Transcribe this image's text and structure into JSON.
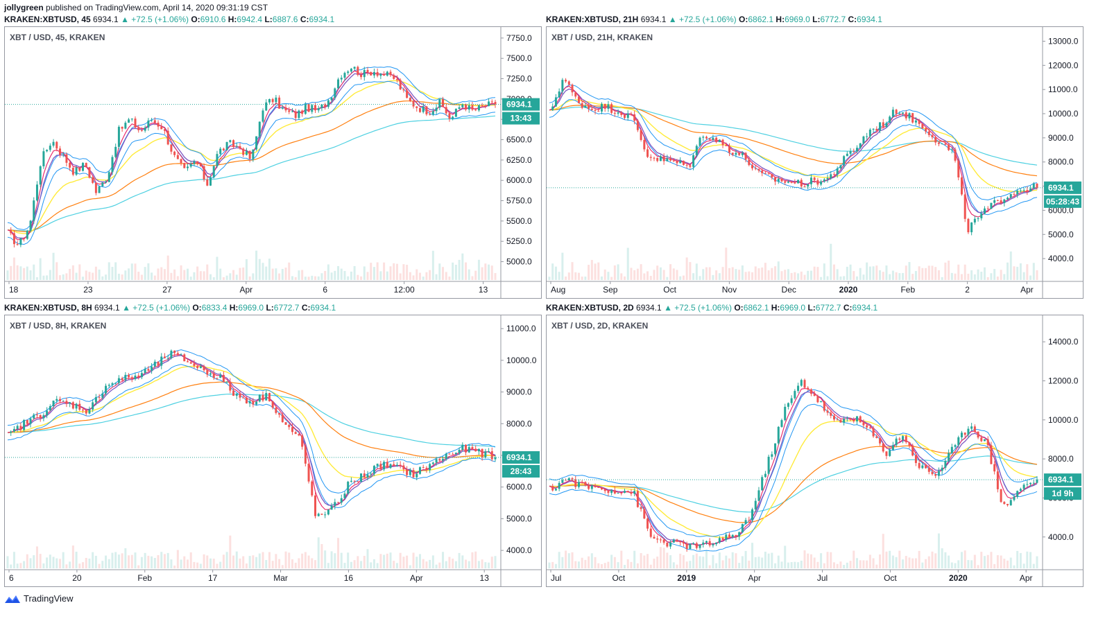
{
  "header": {
    "author": "jollygreen",
    "published": "published on TradingView.com, April 14, 2020 09:31:19 CST"
  },
  "footer": {
    "brand": "TradingView"
  },
  "colors": {
    "up": "#26a69a",
    "down": "#ef5350",
    "ema_yellow": "#ffeb3b",
    "ema_orange": "#ff7f0e",
    "ema_cyan": "#4dd0e1",
    "band_blue": "#2196f3",
    "ribbon_purple": "#7e57c2",
    "ribbon_pink": "#e91e63",
    "price_line": "#26a69a"
  },
  "panes": [
    {
      "symbol": "KRAKEN:XBTUSD, 45",
      "last": "6934.1",
      "change": "▲ +72.5 (+1.06%)",
      "o": "6910.6",
      "h": "6942.4",
      "l": "6887.6",
      "c": "6934.1",
      "label": "XBT / USD, 45, KRAKEN",
      "price_badge": "6934.1",
      "timer": "13:43",
      "y_ticks": [
        "7750.0",
        "7500.0",
        "7250.0",
        "7000.0",
        "6750.0",
        "6500.0",
        "6250.0",
        "6000.0",
        "5750.0",
        "5500.0",
        "5250.0",
        "5000.0"
      ],
      "x_ticks": [
        {
          "t": "18",
          "b": false
        },
        {
          "t": "23",
          "b": false
        },
        {
          "t": "27",
          "b": false
        },
        {
          "t": "Apr",
          "b": false
        },
        {
          "t": "6",
          "b": false
        },
        {
          "t": "12:00",
          "b": false
        },
        {
          "t": "13",
          "b": false
        }
      ],
      "series_price": [
        5350,
        5200,
        5450,
        6250,
        6500,
        6300,
        6100,
        6200,
        5850,
        6050,
        6600,
        6750,
        6600,
        6750,
        6650,
        6300,
        6100,
        6250,
        5950,
        6350,
        6450,
        6400,
        6250,
        6900,
        7000,
        6850,
        6800,
        6900,
        6850,
        7000,
        7300,
        7400,
        7300,
        7350,
        7300,
        7250,
        7000,
        6900,
        6850,
        6950,
        6750,
        6950,
        6850,
        6920,
        6934
      ],
      "ylim": [
        4800,
        7800
      ]
    },
    {
      "symbol": "KRAKEN:XBTUSD, 21H",
      "last": "6934.1",
      "change": "▲ +72.5 (+1.06%)",
      "o": "6862.1",
      "h": "6969.0",
      "l": "6772.7",
      "c": "6934.1",
      "label": "XBT / USD, 21H, KRAKEN",
      "price_badge": "6934.1",
      "timer": "05:28:43",
      "y_ticks": [
        "13000.0",
        "12000.0",
        "11000.0",
        "10000.0",
        "9000.0",
        "8000.0",
        "7000.0",
        "6000.0",
        "5000.0",
        "4000.0"
      ],
      "x_ticks": [
        {
          "t": "Aug",
          "b": false
        },
        {
          "t": "Sep",
          "b": false
        },
        {
          "t": "Oct",
          "b": false
        },
        {
          "t": "Nov",
          "b": false
        },
        {
          "t": "Dec",
          "b": false
        },
        {
          "t": "2020",
          "b": true
        },
        {
          "t": "Feb",
          "b": false
        },
        {
          "t": "2",
          "b": false
        },
        {
          "t": "Apr",
          "b": false
        }
      ],
      "series_price": [
        10000,
        11500,
        10500,
        10200,
        10300,
        10100,
        9800,
        8300,
        8100,
        8000,
        7800,
        9200,
        8900,
        8500,
        8200,
        7500,
        7300,
        7200,
        7100,
        7200,
        7300,
        8000,
        8600,
        9300,
        9600,
        10200,
        9800,
        9400,
        8800,
        8400,
        5200,
        5800,
        6300,
        6700,
        6900,
        6934
      ],
      "ylim": [
        3200,
        13300
      ]
    },
    {
      "symbol": "KRAKEN:XBTUSD, 8H",
      "last": "6934.1",
      "change": "▲ +72.5 (+1.06%)",
      "o": "6833.4",
      "h": "6969.0",
      "l": "6772.7",
      "c": "6934.1",
      "label": "XBT / USD, 8H, KRAKEN",
      "price_badge": "6934.1",
      "timer": "28:43",
      "y_ticks": [
        "11000.0",
        "10000.0",
        "9000.0",
        "8000.0",
        "7000.0",
        "6000.0",
        "5000.0",
        "4000.0"
      ],
      "x_ticks": [
        {
          "t": "6",
          "b": false
        },
        {
          "t": "20",
          "b": false
        },
        {
          "t": "Feb",
          "b": false
        },
        {
          "t": "17",
          "b": false
        },
        {
          "t": "Mar",
          "b": false
        },
        {
          "t": "16",
          "b": false
        },
        {
          "t": "Apr",
          "b": false
        },
        {
          "t": "13",
          "b": false
        }
      ],
      "series_price": [
        7600,
        8000,
        8300,
        8700,
        8600,
        8400,
        9200,
        9400,
        9500,
        9800,
        10200,
        10000,
        9700,
        9500,
        8900,
        8700,
        8900,
        8000,
        7500,
        5000,
        5300,
        6100,
        6400,
        6700,
        6600,
        6400,
        6700,
        7000,
        7200,
        7100,
        6934
      ],
      "ylim": [
        3500,
        11200
      ]
    },
    {
      "symbol": "KRAKEN:XBTUSD, 2D",
      "last": "6934.1",
      "change": "▲ +72.5 (+1.06%)",
      "o": "6862.1",
      "h": "6969.0",
      "l": "6772.7",
      "c": "6934.1",
      "label": "XBT / USD, 2D, KRAKEN",
      "price_badge": "6934.1",
      "timer": "1d 9h",
      "y_ticks": [
        "14000.0",
        "12000.0",
        "10000.0",
        "8000.0",
        "6000.0",
        "4000.0"
      ],
      "x_ticks": [
        {
          "t": "Jul",
          "b": false
        },
        {
          "t": "Oct",
          "b": false
        },
        {
          "t": "2019",
          "b": true
        },
        {
          "t": "Apr",
          "b": false
        },
        {
          "t": "Jul",
          "b": false
        },
        {
          "t": "Oct",
          "b": false
        },
        {
          "t": "2020",
          "b": true
        },
        {
          "t": "Apr",
          "b": false
        }
      ],
      "series_price": [
        6400,
        7000,
        6600,
        6500,
        6400,
        6300,
        4000,
        3700,
        3600,
        3500,
        3800,
        4000,
        5200,
        7800,
        10500,
        12000,
        11000,
        9800,
        10200,
        9500,
        8300,
        9300,
        7600,
        7200,
        8500,
        9800,
        8800,
        5500,
        6500,
        6934
      ],
      "ylim": [
        2500,
        15000
      ]
    }
  ]
}
